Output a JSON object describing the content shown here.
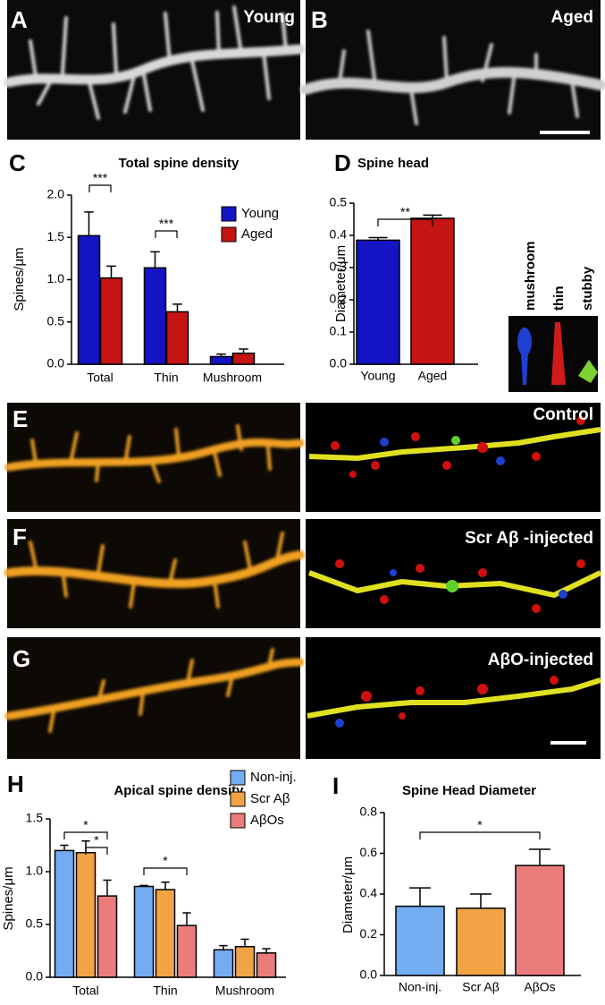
{
  "image_panels": [
    {
      "letter": "A",
      "label": "Young"
    },
    {
      "letter": "B",
      "label": "Aged"
    },
    {
      "letter": "E",
      "label": "Control"
    },
    {
      "letter": "F",
      "label": "Scr Aβ -injected"
    },
    {
      "letter": "G",
      "label": "AβO-injected"
    }
  ],
  "spine_types": [
    "mushroom",
    "thin",
    "stubby"
  ],
  "chart_data": [
    {
      "type": "bar",
      "letter": "C",
      "title": "Total spine density",
      "ylabel": "Spines/μm",
      "categories": [
        "Total",
        "Thin",
        "Mushroom"
      ],
      "series": [
        {
          "name": "Young",
          "color": "#1414c4",
          "values": [
            1.52,
            1.14,
            0.09
          ],
          "errors": [
            0.28,
            0.19,
            0.03
          ]
        },
        {
          "name": "Aged",
          "color": "#c41414",
          "values": [
            1.02,
            0.62,
            0.13
          ],
          "errors": [
            0.14,
            0.09,
            0.05
          ]
        }
      ],
      "ylim": [
        0,
        2
      ],
      "yticks": [
        {
          "value": 0,
          "label": "0.0"
        },
        0.5,
        {
          "value": 1,
          "label": "1.0"
        },
        1.5,
        {
          "value": 2,
          "label": "2.0"
        }
      ],
      "annotations": [
        "***",
        "***"
      ]
    },
    {
      "type": "bar",
      "letter": "D",
      "title": "Spine head",
      "ylabel": "Diameter/μm",
      "categories": [
        "Young",
        "Aged"
      ],
      "values": [
        0.385,
        0.453
      ],
      "errors": [
        0.008,
        0.01
      ],
      "colors": [
        "#1414c4",
        "#c41414"
      ],
      "ylim": [
        0,
        0.5
      ],
      "yticks": [
        {
          "value": 0,
          "label": "0.0"
        },
        0.1,
        0.2,
        0.3,
        0.4,
        0.5
      ],
      "annotations": [
        "**"
      ]
    },
    {
      "type": "bar",
      "letter": "H",
      "title": "Apical spine density",
      "ylabel": "Spines/μm",
      "categories": [
        "Total",
        "Thin",
        "Mushroom"
      ],
      "series": [
        {
          "name": "Non-inj.",
          "color": "#74acf2",
          "values": [
            1.2,
            0.86,
            0.26
          ],
          "errors": [
            0.05,
            0.01,
            0.04
          ]
        },
        {
          "name": "Scr Aβ",
          "color": "#f2a444",
          "values": [
            1.18,
            0.83,
            0.29
          ],
          "errors": [
            0.11,
            0.07,
            0.07
          ]
        },
        {
          "name": "AβOs",
          "color": "#ea7c7c",
          "values": [
            0.77,
            0.49,
            0.23
          ],
          "errors": [
            0.15,
            0.12,
            0.04
          ]
        }
      ],
      "ylim": [
        0,
        1.5
      ],
      "yticks": [
        {
          "value": 0,
          "label": "0.0"
        },
        0.5,
        {
          "value": 1,
          "label": "1.0"
        },
        1.5
      ],
      "annotations": [
        "*",
        "*",
        "*"
      ]
    },
    {
      "type": "bar",
      "letter": "I",
      "title": "Spine Head Diameter",
      "ylabel": "Diameter/μm",
      "categories": [
        "Non-inj.",
        "Scr Aβ",
        "AβOs"
      ],
      "values": [
        0.34,
        0.33,
        0.54
      ],
      "errors": [
        0.09,
        0.07,
        0.08
      ],
      "colors": [
        "#74acf2",
        "#f2a444",
        "#ea7c7c"
      ],
      "ylim": [
        0,
        0.8
      ],
      "yticks": [
        {
          "value": 0,
          "label": "0.0"
        },
        0.2,
        0.4,
        0.6,
        0.8
      ],
      "annotations": [
        "*"
      ]
    }
  ]
}
